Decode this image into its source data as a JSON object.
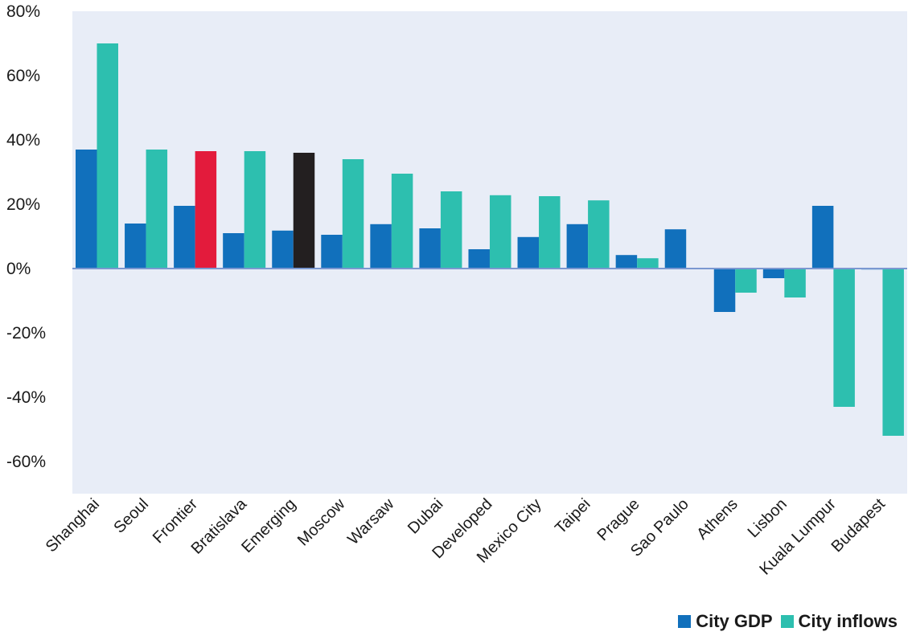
{
  "chart_data": {
    "type": "bar",
    "categories": [
      "Shanghai",
      "Seoul",
      "Frontier",
      "Bratislava",
      "Emerging",
      "Moscow",
      "Warsaw",
      "Dubai",
      "Developed",
      "Mexico City",
      "Taipei",
      "Prague",
      "Sao Paulo",
      "Athens",
      "Lisbon",
      "Kuala Lumpur",
      "Budapest"
    ],
    "series": [
      {
        "name": "City GDP",
        "color": "#1170bc",
        "values": [
          37,
          14,
          19.5,
          11,
          11.8,
          10.5,
          13.8,
          12.5,
          6,
          9.8,
          13.8,
          4.2,
          12.2,
          -13.5,
          -3,
          19.5,
          -0.3
        ]
      },
      {
        "name": "City inflows",
        "color": "#2dbfaf",
        "values": [
          70,
          37,
          36.5,
          36.5,
          36,
          34,
          29.5,
          24,
          22.8,
          22.5,
          21.2,
          3.2,
          null,
          -7.5,
          -9,
          -43,
          -52
        ]
      }
    ],
    "highlight_colors": {
      "Frontier": "#e31b3c",
      "Emerging": "#231f20"
    },
    "yticks": [
      "80%",
      "60%",
      "40%",
      "20%",
      "0%",
      "-20%",
      "-40%",
      "-60%"
    ],
    "ylim": [
      -70,
      80
    ],
    "plot_background": "#e8edf7",
    "zero_line_color": "#7b98d1",
    "legend_position": "bottom-right",
    "grid": false
  }
}
